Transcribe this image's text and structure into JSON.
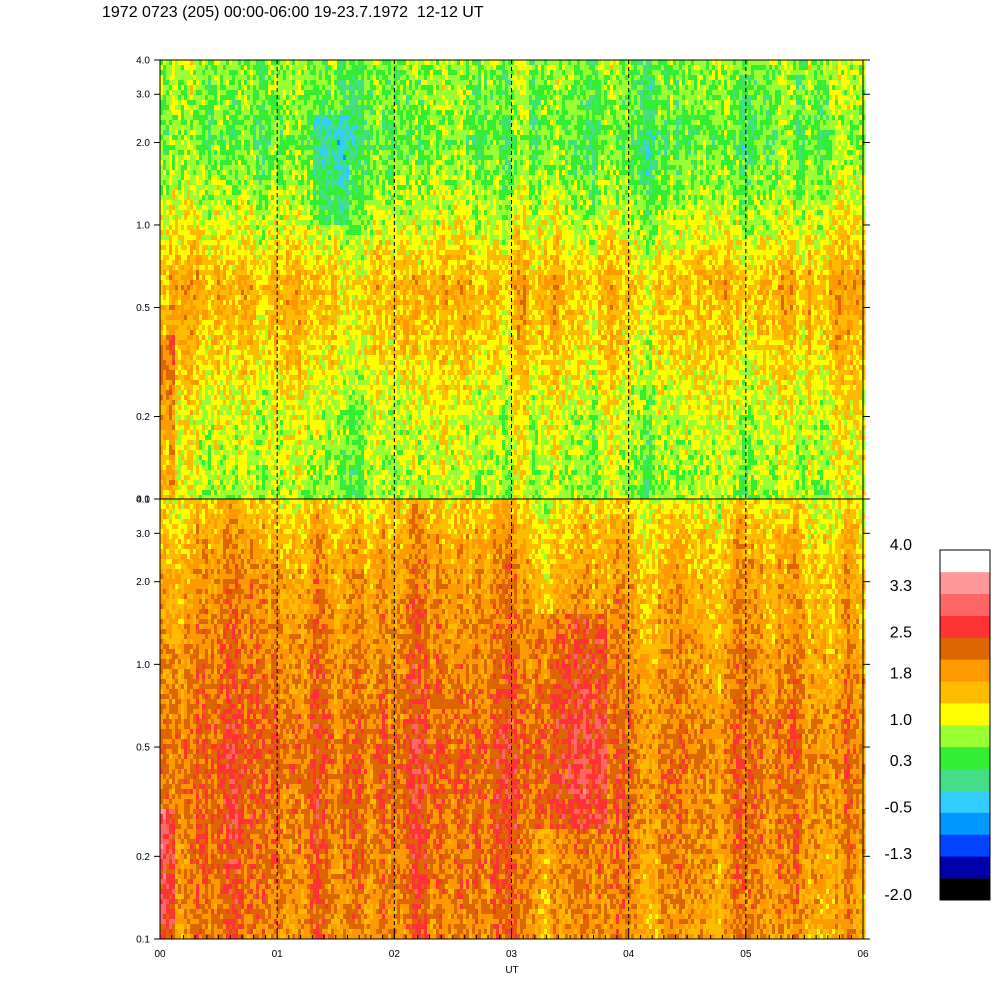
{
  "title": "1972 0723 (205) 00:00-06:00 19-23.7.1972  12-12 UT",
  "chart_data": {
    "type": "heatmap",
    "xlabel": "UT",
    "x_tick_labels": [
      "00",
      "01",
      "02",
      "03",
      "04",
      "05",
      "06"
    ],
    "x_range": [
      0,
      6
    ],
    "y_scale": "log",
    "panels": [
      {
        "name": "upper",
        "y_range": [
          0.1,
          4.0
        ],
        "y_ticks": [
          0.1,
          0.2,
          0.5,
          1.0,
          2.0,
          3.0,
          4.0
        ],
        "y_tick_labels": [
          "0.1",
          "0.2",
          "0.5",
          "1.0",
          "2.0",
          "3.0",
          "4.0"
        ],
        "level_profile": [
          {
            "y": 0.1,
            "level": 7
          },
          {
            "y": 0.2,
            "level": 7.5
          },
          {
            "y": 0.35,
            "level": 8.5
          },
          {
            "y": 0.6,
            "level": 9.2
          },
          {
            "y": 1.0,
            "level": 7.5
          },
          {
            "y": 2.0,
            "level": 6.2
          },
          {
            "y": 4.0,
            "level": 6.8
          }
        ]
      },
      {
        "name": "lower",
        "y_range": [
          0.1,
          4.0
        ],
        "y_ticks": [
          0.1,
          0.2,
          0.5,
          1.0,
          2.0,
          3.0,
          4.0
        ],
        "y_tick_labels": [
          "0.1",
          "0.2",
          "0.5",
          "1.0",
          "2.0",
          "3.0",
          "4.0"
        ],
        "level_profile": [
          {
            "y": 0.1,
            "level": 10.2
          },
          {
            "y": 0.3,
            "level": 10.8
          },
          {
            "y": 0.5,
            "level": 10.9
          },
          {
            "y": 1.0,
            "level": 10.3
          },
          {
            "y": 2.0,
            "level": 9.8
          },
          {
            "y": 3.0,
            "level": 9.2
          },
          {
            "y": 4.0,
            "level": 8.4
          }
        ]
      }
    ],
    "hour_markers": [
      1,
      2,
      3,
      4,
      5
    ],
    "colorbar": {
      "min": -2.0,
      "max": 4.0,
      "labels": [
        "4.0",
        "3.3",
        "2.5",
        "1.8",
        "1.0",
        "0.3",
        "-0.5",
        "-1.3",
        "-2.0"
      ],
      "colors": [
        "#000000",
        "#0000aa",
        "#0044ff",
        "#0099ff",
        "#33ccff",
        "#44dd88",
        "#33ee33",
        "#99ff33",
        "#ffff00",
        "#ffbb00",
        "#ff9900",
        "#dd6600",
        "#ff3333",
        "#ff6666",
        "#ff9999",
        "#ffffff"
      ]
    }
  }
}
